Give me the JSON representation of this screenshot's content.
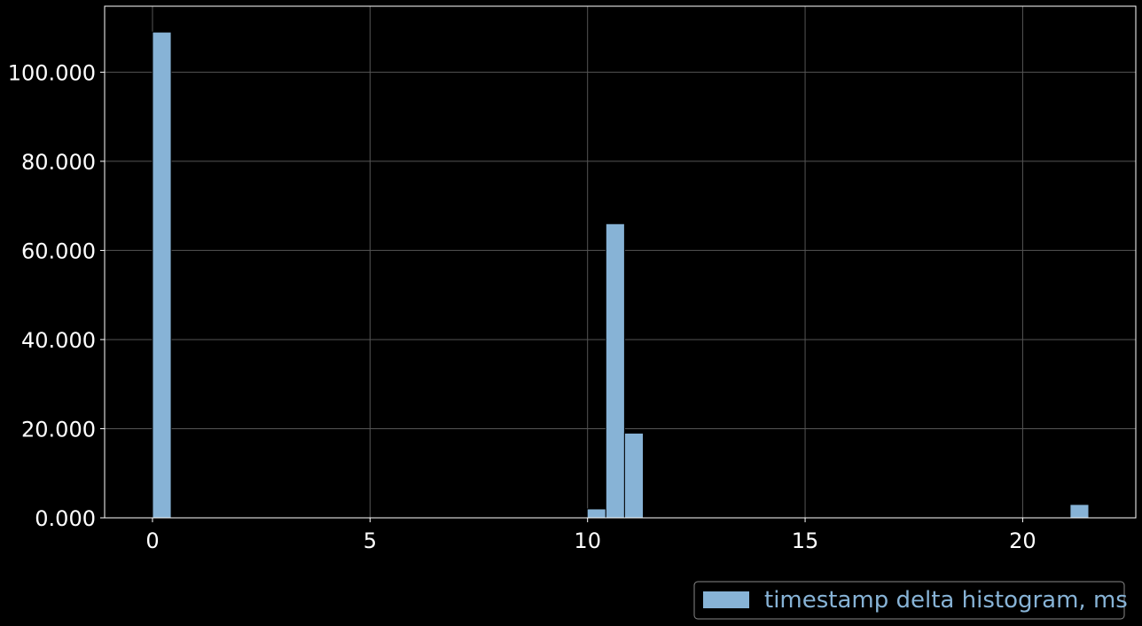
{
  "chart_data": {
    "type": "bar",
    "series": [
      {
        "name": "timestamp delta histogram, ms",
        "bins": [
          {
            "x0": 0.0,
            "x1": 0.43,
            "value": 109
          },
          {
            "x0": 9.99,
            "x1": 10.42,
            "value": 2
          },
          {
            "x0": 10.42,
            "x1": 10.85,
            "value": 66
          },
          {
            "x0": 10.85,
            "x1": 11.28,
            "value": 19
          },
          {
            "x0": 21.09,
            "x1": 21.52,
            "value": 3
          }
        ]
      }
    ],
    "xlim": [
      -1.1,
      22.6
    ],
    "ylim": [
      0,
      114.8
    ],
    "xticks": [
      0,
      5,
      10,
      15,
      20
    ],
    "xtick_labels": [
      "0",
      "5",
      "10",
      "15",
      "20"
    ],
    "yticks": [
      0,
      20,
      40,
      60,
      80,
      100
    ],
    "ytick_labels": [
      "0.000",
      "20.000",
      "40.000",
      "60.000",
      "80.000",
      "100.000"
    ],
    "xlabel": "",
    "ylabel": "",
    "title": "",
    "grid": true,
    "legend_position": "bottom-right, outside plot",
    "colors": {
      "background": "#000000",
      "bar_fill": "#87b3d6",
      "bar_edge": "#000000",
      "grid": "#555555",
      "axes": "#ffffff",
      "text": "#ffffff",
      "legend_text": "#87b3d6"
    }
  }
}
